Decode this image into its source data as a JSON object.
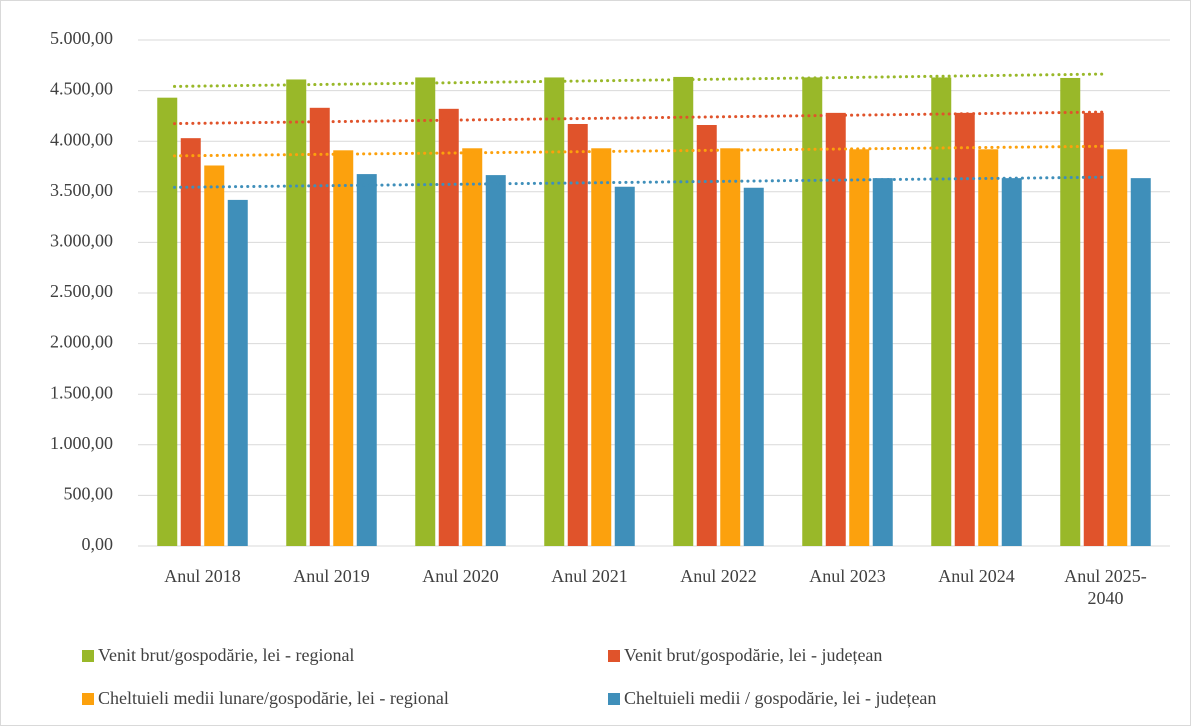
{
  "chart_data": {
    "type": "bar",
    "categories": [
      "Anul 2018",
      "Anul 2019",
      "Anul 2020",
      "Anul 2021",
      "Anul 2022",
      "Anul 2023",
      "Anul 2024",
      "Anul 2025-2040"
    ],
    "series": [
      {
        "name": "Venit brut/gospodărie, lei - regional",
        "color": "#99b829",
        "values": [
          4430,
          4610,
          4630,
          4630,
          4635,
          4630,
          4630,
          4625
        ]
      },
      {
        "name": "Venit brut/gospodărie, lei - județean",
        "color": "#e0532b",
        "values": [
          4030,
          4330,
          4320,
          4170,
          4160,
          4280,
          4280,
          4280
        ]
      },
      {
        "name": "Cheltuieli medii lunare/gospodărie, lei - regional",
        "color": "#fca10d",
        "values": [
          3760,
          3910,
          3930,
          3930,
          3930,
          3920,
          3920,
          3920
        ]
      },
      {
        "name": "Cheltuieli medii / gospodărie, lei - județean",
        "color": "#3f8fba",
        "values": [
          3420,
          3675,
          3665,
          3550,
          3540,
          3635,
          3635,
          3635
        ]
      }
    ],
    "ylim": [
      0,
      5000
    ],
    "yticks": [
      {
        "value": 0,
        "label": "0,00"
      },
      {
        "value": 500,
        "label": "500,00"
      },
      {
        "value": 1000,
        "label": "1.000,00"
      },
      {
        "value": 1500,
        "label": "1.500,00"
      },
      {
        "value": 2000,
        "label": "2.000,00"
      },
      {
        "value": 2500,
        "label": "2.500,00"
      },
      {
        "value": 3000,
        "label": "3.000,00"
      },
      {
        "value": 3500,
        "label": "3.500,00"
      },
      {
        "value": 4000,
        "label": "4.000,00"
      },
      {
        "value": 4500,
        "label": "4.500,00"
      },
      {
        "value": 5000,
        "label": "5.000,00"
      }
    ],
    "grid": true,
    "trendline": "linear",
    "legend": "bottom"
  }
}
